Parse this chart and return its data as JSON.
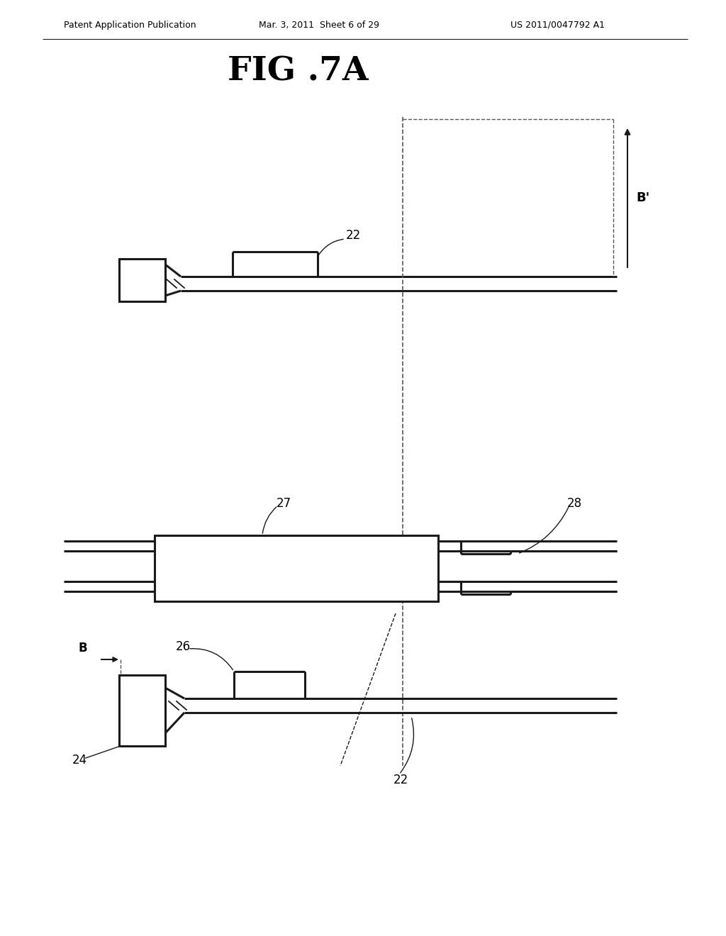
{
  "title": "FIG .7A",
  "header_left": "Patent Application Publication",
  "header_center": "Mar. 3, 2011  Sheet 6 of 29",
  "header_right": "US 2011/0047792 A1",
  "bg_color": "#ffffff",
  "line_color": "#1a1a1a"
}
